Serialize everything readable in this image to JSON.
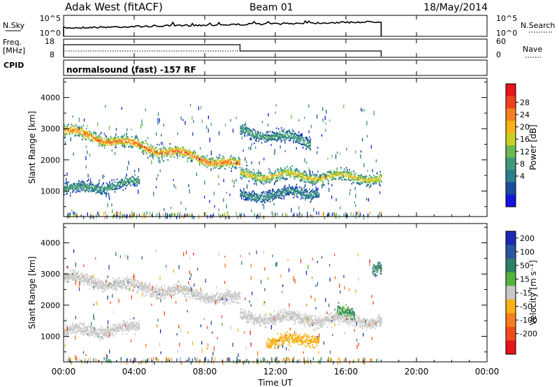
{
  "header": {
    "station": "Adak West (fitACF)",
    "beam": "Beam 01",
    "date": "18/May/2014"
  },
  "strip_labels": {
    "nsky": "N.Sky",
    "nsky_top": "10^5",
    "nsky_bottom": "10^0",
    "nsearch": "N.Search",
    "nsearch_top": "10^5",
    "nsearch_bottom": "10^0",
    "freq": "Freq.",
    "freq_unit": "[MHz]",
    "freq_top": "18",
    "freq_bottom": "8",
    "nave": "Nave",
    "nave_top": "60",
    "nave_bottom": "0",
    "cpid": "CPID",
    "cpid_text": "normalsound (fast) -157 RF"
  },
  "x_axis": {
    "label": "Time UT",
    "ticks": [
      "00:00",
      "04:00",
      "08:00",
      "12:00",
      "16:00",
      "20:00",
      "00:00"
    ]
  },
  "power_colorbar": {
    "title": "Power [dB]",
    "labels": [
      "28",
      "24",
      "20",
      "16",
      "12",
      "8",
      "4"
    ],
    "colors": [
      "#e8141b",
      "#f0421c",
      "#f57f20",
      "#f7b217",
      "#c9cf2a",
      "#6aba51",
      "#3f9a7d",
      "#2a7f8a",
      "#1b4c9d",
      "#1414e0"
    ]
  },
  "velocity_colorbar": {
    "title": "Velocity [m s⁻¹]",
    "labels": [
      "200",
      "100",
      "50",
      "15",
      "-15",
      "-50",
      "-100",
      "-200"
    ],
    "colors": [
      "#1a28b4",
      "#2a55a0",
      "#2f7f6a",
      "#55b23b",
      "#c8c8c8",
      "#f7b217",
      "#f57f20",
      "#f04a1d",
      "#e8141b"
    ]
  },
  "chart_data": [
    {
      "type": "heatmap",
      "title": "Power",
      "ylabel": "Slant Range [km]",
      "yticks": [
        "1000",
        "2000",
        "3000",
        "4000"
      ],
      "ylim": [
        180,
        4620
      ],
      "xlim_hours": [
        0,
        24
      ],
      "data_end_hour": 18,
      "gap_hour": 10,
      "bands": [
        {
          "t0": 0.0,
          "t1": 10.0,
          "r0": 2950,
          "r1": 1820,
          "peak": 26
        },
        {
          "t0": 0.0,
          "t1": 4.3,
          "r0": 1050,
          "r1": 1300,
          "peak": 12
        },
        {
          "t0": 10.0,
          "t1": 18.0,
          "r0": 1550,
          "r1": 1450,
          "peak": 20
        },
        {
          "t0": 10.0,
          "t1": 14.5,
          "r0": 850,
          "r1": 1000,
          "peak": 10
        },
        {
          "t0": 10.0,
          "t1": 14.0,
          "r0": 2950,
          "r1": 2600,
          "peak": 12
        }
      ]
    },
    {
      "type": "heatmap",
      "title": "Velocity",
      "ylabel": "Slant Range [km]",
      "yticks": [
        "1000",
        "2000",
        "3000",
        "4000"
      ],
      "ylim": [
        180,
        4620
      ],
      "xlim_hours": [
        0,
        24
      ],
      "data_end_hour": 18,
      "gap_hour": 10,
      "bands": [
        {
          "t0": 0.0,
          "t1": 10.0,
          "r0": 2900,
          "r1": 2200,
          "velocity": 0
        },
        {
          "t0": 0.0,
          "t1": 4.3,
          "r0": 1150,
          "r1": 1300,
          "velocity": 0
        },
        {
          "t0": 10.0,
          "t1": 18.0,
          "r0": 1650,
          "r1": 1500,
          "velocity": 0
        },
        {
          "t0": 11.5,
          "t1": 14.5,
          "r0": 800,
          "r1": 1000,
          "velocity": -40
        },
        {
          "t0": 15.5,
          "t1": 16.5,
          "r0": 1800,
          "r1": 1700,
          "velocity": 30
        },
        {
          "t0": 17.5,
          "t1": 18.0,
          "r0": 3250,
          "r1": 3250,
          "velocity": 40
        }
      ]
    }
  ]
}
